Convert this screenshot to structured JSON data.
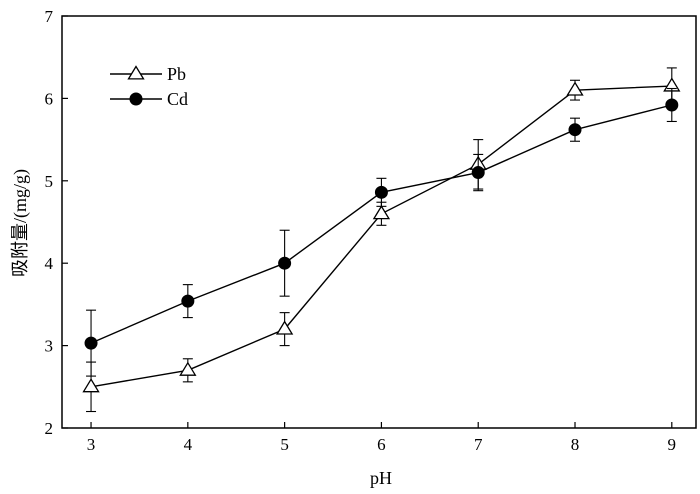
{
  "chart_data": {
    "type": "line",
    "title": "",
    "xlabel": "pH",
    "ylabel": "吸附量/(mg/g)",
    "xlim": [
      2.7,
      9.25
    ],
    "ylim": [
      2,
      7
    ],
    "xticks": [
      3,
      4,
      5,
      6,
      7,
      8,
      9
    ],
    "yticks": [
      2,
      3,
      4,
      5,
      6,
      7
    ],
    "grid": false,
    "legend_position": "top-left",
    "x": [
      3,
      4,
      5,
      6,
      7,
      8,
      9
    ],
    "series": [
      {
        "name": "Pb",
        "marker": "open-triangle",
        "values": [
          2.5,
          2.7,
          3.2,
          4.6,
          5.2,
          6.1,
          6.15
        ],
        "errors": [
          0.3,
          0.14,
          0.2,
          0.14,
          0.3,
          0.12,
          0.22
        ]
      },
      {
        "name": "Cd",
        "marker": "filled-circle",
        "values": [
          3.03,
          3.54,
          4.0,
          4.86,
          5.1,
          5.62,
          5.92
        ],
        "errors": [
          0.4,
          0.2,
          0.4,
          0.17,
          0.22,
          0.14,
          0.2
        ]
      }
    ],
    "colors": {
      "line": "#000000",
      "marker_fill_filled": "#000000",
      "marker_fill_open": "#ffffff"
    }
  }
}
